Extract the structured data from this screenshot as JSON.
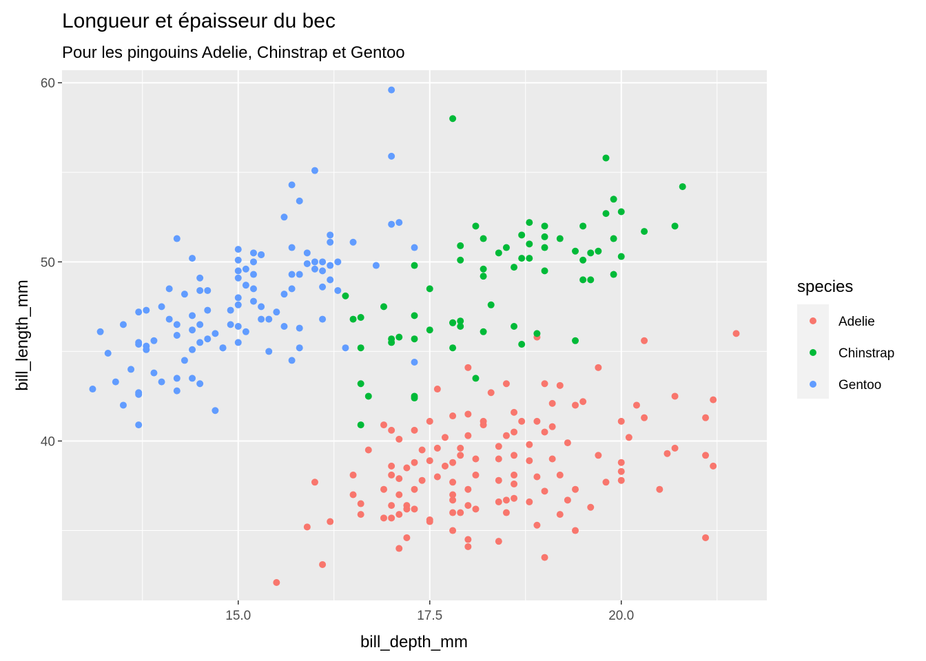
{
  "chart_data": {
    "type": "scatter",
    "title": "Longueur et épaisseur du bec",
    "subtitle": "Pour les pingouins Adelie, Chinstrap et Gentoo",
    "xlabel": "bill_depth_mm",
    "ylabel": "bill_length_mm",
    "xlim": [
      12.7,
      21.9
    ],
    "ylim": [
      31.1,
      60.7
    ],
    "xticks": [
      15.0,
      17.5,
      20.0
    ],
    "xtick_labels": [
      "15.0",
      "17.5",
      "20.0"
    ],
    "yticks": [
      40,
      50,
      60
    ],
    "ytick_labels": [
      "40",
      "50",
      "60"
    ],
    "grid": true,
    "panel_background": "#ebebeb",
    "legend": {
      "title": "species",
      "position": "right"
    },
    "series": [
      {
        "name": "Adelie",
        "color": "#f8766d",
        "points": [
          [
            15.5,
            32.1
          ],
          [
            16.1,
            33.1
          ],
          [
            17.1,
            34.0
          ],
          [
            18.0,
            34.1
          ],
          [
            19.0,
            33.5
          ],
          [
            17.2,
            34.6
          ],
          [
            17.8,
            35.0
          ],
          [
            18.0,
            34.5
          ],
          [
            18.4,
            34.4
          ],
          [
            21.1,
            34.6
          ],
          [
            15.9,
            35.2
          ],
          [
            16.2,
            35.5
          ],
          [
            16.6,
            35.9
          ],
          [
            16.9,
            35.7
          ],
          [
            17.0,
            35.7
          ],
          [
            17.1,
            35.9
          ],
          [
            17.2,
            36.2
          ],
          [
            17.3,
            36.2
          ],
          [
            17.5,
            35.6
          ],
          [
            17.5,
            35.5
          ],
          [
            17.8,
            36.0
          ],
          [
            17.9,
            36.0
          ],
          [
            18.1,
            36.2
          ],
          [
            18.5,
            36.0
          ],
          [
            18.9,
            35.3
          ],
          [
            19.2,
            35.9
          ],
          [
            19.4,
            35.0
          ],
          [
            19.6,
            36.3
          ],
          [
            16.6,
            36.5
          ],
          [
            17.0,
            36.4
          ],
          [
            17.2,
            36.4
          ],
          [
            17.8,
            36.7
          ],
          [
            18.0,
            36.4
          ],
          [
            18.4,
            36.6
          ],
          [
            18.5,
            36.7
          ],
          [
            18.6,
            36.8
          ],
          [
            18.8,
            36.6
          ],
          [
            19.3,
            36.7
          ],
          [
            16.5,
            37.0
          ],
          [
            16.9,
            37.3
          ],
          [
            17.1,
            37.0
          ],
          [
            17.3,
            37.3
          ],
          [
            17.8,
            37.0
          ],
          [
            18.0,
            37.3
          ],
          [
            18.6,
            37.6
          ],
          [
            19.0,
            37.2
          ],
          [
            19.4,
            37.3
          ],
          [
            19.8,
            37.7
          ],
          [
            20.0,
            37.8
          ],
          [
            20.5,
            37.3
          ],
          [
            16.0,
            37.7
          ],
          [
            16.5,
            38.1
          ],
          [
            17.0,
            38.1
          ],
          [
            17.1,
            37.9
          ],
          [
            17.4,
            37.8
          ],
          [
            17.6,
            38.0
          ],
          [
            17.8,
            37.7
          ],
          [
            18.1,
            38.1
          ],
          [
            18.4,
            37.8
          ],
          [
            18.6,
            38.1
          ],
          [
            18.9,
            38.0
          ],
          [
            19.2,
            38.1
          ],
          [
            19.7,
            39.2
          ],
          [
            20.0,
            38.3
          ],
          [
            16.7,
            39.5
          ],
          [
            17.0,
            38.6
          ],
          [
            17.2,
            38.5
          ],
          [
            17.3,
            38.8
          ],
          [
            17.5,
            38.9
          ],
          [
            17.7,
            38.6
          ],
          [
            17.8,
            38.8
          ],
          [
            17.9,
            39.2
          ],
          [
            18.1,
            39.0
          ],
          [
            18.4,
            39.0
          ],
          [
            18.6,
            39.2
          ],
          [
            18.8,
            38.9
          ],
          [
            19.1,
            39.0
          ],
          [
            20.0,
            38.8
          ],
          [
            20.6,
            39.3
          ],
          [
            20.7,
            39.6
          ],
          [
            21.1,
            39.2
          ],
          [
            21.2,
            38.6
          ],
          [
            16.9,
            40.9
          ],
          [
            17.0,
            40.6
          ],
          [
            17.1,
            40.1
          ],
          [
            17.3,
            40.6
          ],
          [
            17.4,
            39.5
          ],
          [
            17.6,
            39.6
          ],
          [
            17.7,
            40.2
          ],
          [
            17.9,
            39.6
          ],
          [
            18.0,
            40.3
          ],
          [
            18.2,
            40.9
          ],
          [
            18.4,
            39.7
          ],
          [
            18.5,
            40.3
          ],
          [
            18.6,
            40.5
          ],
          [
            18.8,
            39.8
          ],
          [
            19.0,
            40.5
          ],
          [
            19.1,
            40.8
          ],
          [
            19.3,
            39.9
          ],
          [
            19.4,
            42.0
          ],
          [
            19.5,
            42.2
          ],
          [
            20.1,
            40.2
          ],
          [
            20.0,
            41.1
          ],
          [
            21.1,
            41.3
          ],
          [
            17.5,
            41.1
          ],
          [
            17.6,
            42.9
          ],
          [
            17.8,
            41.4
          ],
          [
            18.0,
            41.5
          ],
          [
            18.2,
            41.1
          ],
          [
            18.3,
            42.7
          ],
          [
            18.5,
            43.2
          ],
          [
            18.6,
            41.6
          ],
          [
            18.7,
            41.1
          ],
          [
            18.9,
            41.1
          ],
          [
            19.0,
            43.2
          ],
          [
            19.1,
            42.1
          ],
          [
            19.2,
            43.1
          ],
          [
            20.2,
            42.0
          ],
          [
            20.3,
            41.3
          ],
          [
            20.7,
            42.5
          ],
          [
            21.2,
            42.3
          ],
          [
            18.0,
            44.1
          ],
          [
            19.7,
            44.1
          ],
          [
            18.9,
            45.8
          ],
          [
            20.3,
            45.6
          ],
          [
            21.5,
            46.0
          ]
        ]
      },
      {
        "name": "Chinstrap",
        "color": "#00ba38",
        "points": [
          [
            16.6,
            40.9
          ],
          [
            16.7,
            42.5
          ],
          [
            16.6,
            43.2
          ],
          [
            17.3,
            42.4
          ],
          [
            17.3,
            42.5
          ],
          [
            18.1,
            43.5
          ],
          [
            16.6,
            45.2
          ],
          [
            17.0,
            45.5
          ],
          [
            17.0,
            45.7
          ],
          [
            17.1,
            45.8
          ],
          [
            17.3,
            45.7
          ],
          [
            17.5,
            46.2
          ],
          [
            17.8,
            45.2
          ],
          [
            17.8,
            46.6
          ],
          [
            17.9,
            46.4
          ],
          [
            18.2,
            46.1
          ],
          [
            18.7,
            45.4
          ],
          [
            18.9,
            46.0
          ],
          [
            19.4,
            45.6
          ],
          [
            16.5,
            46.8
          ],
          [
            16.6,
            46.9
          ],
          [
            16.4,
            48.1
          ],
          [
            16.9,
            47.5
          ],
          [
            17.3,
            47.0
          ],
          [
            17.5,
            48.5
          ],
          [
            17.8,
            46.6
          ],
          [
            17.9,
            46.7
          ],
          [
            18.3,
            47.6
          ],
          [
            18.6,
            46.4
          ],
          [
            17.3,
            49.8
          ],
          [
            17.9,
            50.1
          ],
          [
            18.2,
            49.2
          ],
          [
            18.2,
            49.6
          ],
          [
            18.6,
            49.7
          ],
          [
            18.7,
            50.2
          ],
          [
            18.8,
            50.2
          ],
          [
            19.0,
            49.5
          ],
          [
            19.5,
            49.0
          ],
          [
            19.6,
            49.0
          ],
          [
            19.9,
            49.3
          ],
          [
            20.0,
            50.3
          ],
          [
            19.6,
            50.5
          ],
          [
            19.5,
            50.1
          ],
          [
            18.8,
            51.0
          ],
          [
            17.9,
            50.9
          ],
          [
            18.2,
            51.3
          ],
          [
            18.4,
            50.5
          ],
          [
            18.5,
            50.8
          ],
          [
            18.7,
            51.5
          ],
          [
            19.0,
            51.4
          ],
          [
            19.0,
            50.8
          ],
          [
            19.2,
            51.3
          ],
          [
            19.4,
            50.6
          ],
          [
            19.7,
            50.6
          ],
          [
            19.9,
            51.3
          ],
          [
            18.1,
            52.0
          ],
          [
            18.8,
            52.2
          ],
          [
            19.0,
            52.0
          ],
          [
            19.5,
            52.0
          ],
          [
            19.8,
            52.7
          ],
          [
            20.0,
            52.8
          ],
          [
            20.3,
            51.7
          ],
          [
            20.7,
            52.0
          ],
          [
            19.9,
            53.5
          ],
          [
            20.8,
            54.2
          ],
          [
            19.8,
            55.8
          ],
          [
            17.8,
            58.0
          ]
        ]
      },
      {
        "name": "Gentoo",
        "color": "#619cff",
        "points": [
          [
            13.1,
            42.9
          ],
          [
            13.7,
            40.9
          ],
          [
            14.7,
            41.7
          ],
          [
            13.5,
            42.0
          ],
          [
            13.4,
            43.3
          ],
          [
            13.7,
            42.6
          ],
          [
            13.7,
            42.7
          ],
          [
            13.6,
            44.0
          ],
          [
            13.9,
            43.8
          ],
          [
            14.0,
            43.3
          ],
          [
            14.2,
            42.8
          ],
          [
            14.2,
            43.5
          ],
          [
            14.4,
            43.5
          ],
          [
            14.5,
            43.2
          ],
          [
            13.3,
            44.9
          ],
          [
            13.2,
            46.1
          ],
          [
            13.5,
            46.5
          ],
          [
            13.7,
            45.4
          ],
          [
            13.7,
            45.5
          ],
          [
            13.8,
            45.3
          ],
          [
            13.8,
            45.1
          ],
          [
            13.9,
            45.6
          ],
          [
            14.0,
            47.5
          ],
          [
            14.1,
            46.8
          ],
          [
            14.2,
            46.5
          ],
          [
            14.2,
            45.9
          ],
          [
            14.3,
            44.5
          ],
          [
            14.4,
            46.2
          ],
          [
            14.4,
            45.1
          ],
          [
            14.5,
            45.5
          ],
          [
            14.5,
            46.5
          ],
          [
            14.6,
            45.7
          ],
          [
            14.7,
            46.0
          ],
          [
            14.8,
            45.2
          ],
          [
            14.9,
            46.5
          ],
          [
            15.0,
            45.5
          ],
          [
            15.0,
            46.4
          ],
          [
            15.1,
            46.1
          ],
          [
            13.7,
            47.2
          ],
          [
            13.8,
            47.3
          ],
          [
            14.1,
            48.5
          ],
          [
            14.3,
            48.2
          ],
          [
            14.4,
            47.0
          ],
          [
            14.5,
            48.4
          ],
          [
            14.5,
            49.1
          ],
          [
            14.6,
            47.3
          ],
          [
            14.6,
            48.4
          ],
          [
            14.8,
            45.2
          ],
          [
            14.9,
            47.3
          ],
          [
            15.0,
            47.6
          ],
          [
            15.0,
            48.0
          ],
          [
            15.0,
            49.1
          ],
          [
            15.1,
            48.7
          ],
          [
            15.2,
            47.8
          ],
          [
            15.2,
            48.5
          ],
          [
            15.3,
            46.8
          ],
          [
            15.3,
            47.5
          ],
          [
            15.4,
            45.0
          ],
          [
            15.4,
            46.8
          ],
          [
            15.5,
            47.2
          ],
          [
            15.6,
            46.4
          ],
          [
            15.7,
            44.5
          ],
          [
            15.7,
            48.5
          ],
          [
            15.8,
            45.2
          ],
          [
            15.8,
            46.3
          ],
          [
            15.0,
            49.5
          ],
          [
            15.0,
            50.1
          ],
          [
            15.1,
            49.6
          ],
          [
            15.2,
            49.3
          ],
          [
            15.2,
            50.0
          ],
          [
            15.3,
            50.4
          ],
          [
            15.6,
            48.2
          ],
          [
            15.7,
            49.3
          ],
          [
            15.8,
            49.3
          ],
          [
            15.9,
            49.9
          ],
          [
            16.0,
            49.6
          ],
          [
            16.1,
            48.6
          ],
          [
            16.1,
            49.5
          ],
          [
            16.2,
            49.0
          ],
          [
            16.2,
            49.8
          ],
          [
            16.3,
            48.4
          ],
          [
            16.3,
            50.0
          ],
          [
            16.0,
            50.0
          ],
          [
            16.1,
            50.0
          ],
          [
            15.0,
            50.7
          ],
          [
            15.2,
            50.5
          ],
          [
            15.3,
            50.4
          ],
          [
            15.7,
            50.8
          ],
          [
            15.9,
            50.5
          ],
          [
            16.2,
            51.1
          ],
          [
            16.2,
            51.5
          ],
          [
            16.5,
            51.1
          ],
          [
            16.1,
            46.8
          ],
          [
            16.4,
            45.2
          ],
          [
            16.8,
            49.8
          ],
          [
            17.0,
            52.1
          ],
          [
            17.1,
            52.2
          ],
          [
            17.3,
            50.8
          ],
          [
            17.3,
            44.4
          ],
          [
            14.2,
            51.3
          ],
          [
            14.4,
            50.2
          ],
          [
            15.6,
            52.5
          ],
          [
            15.8,
            53.4
          ],
          [
            15.7,
            54.3
          ],
          [
            16.0,
            55.1
          ],
          [
            17.0,
            55.9
          ],
          [
            17.0,
            59.6
          ]
        ]
      }
    ]
  }
}
